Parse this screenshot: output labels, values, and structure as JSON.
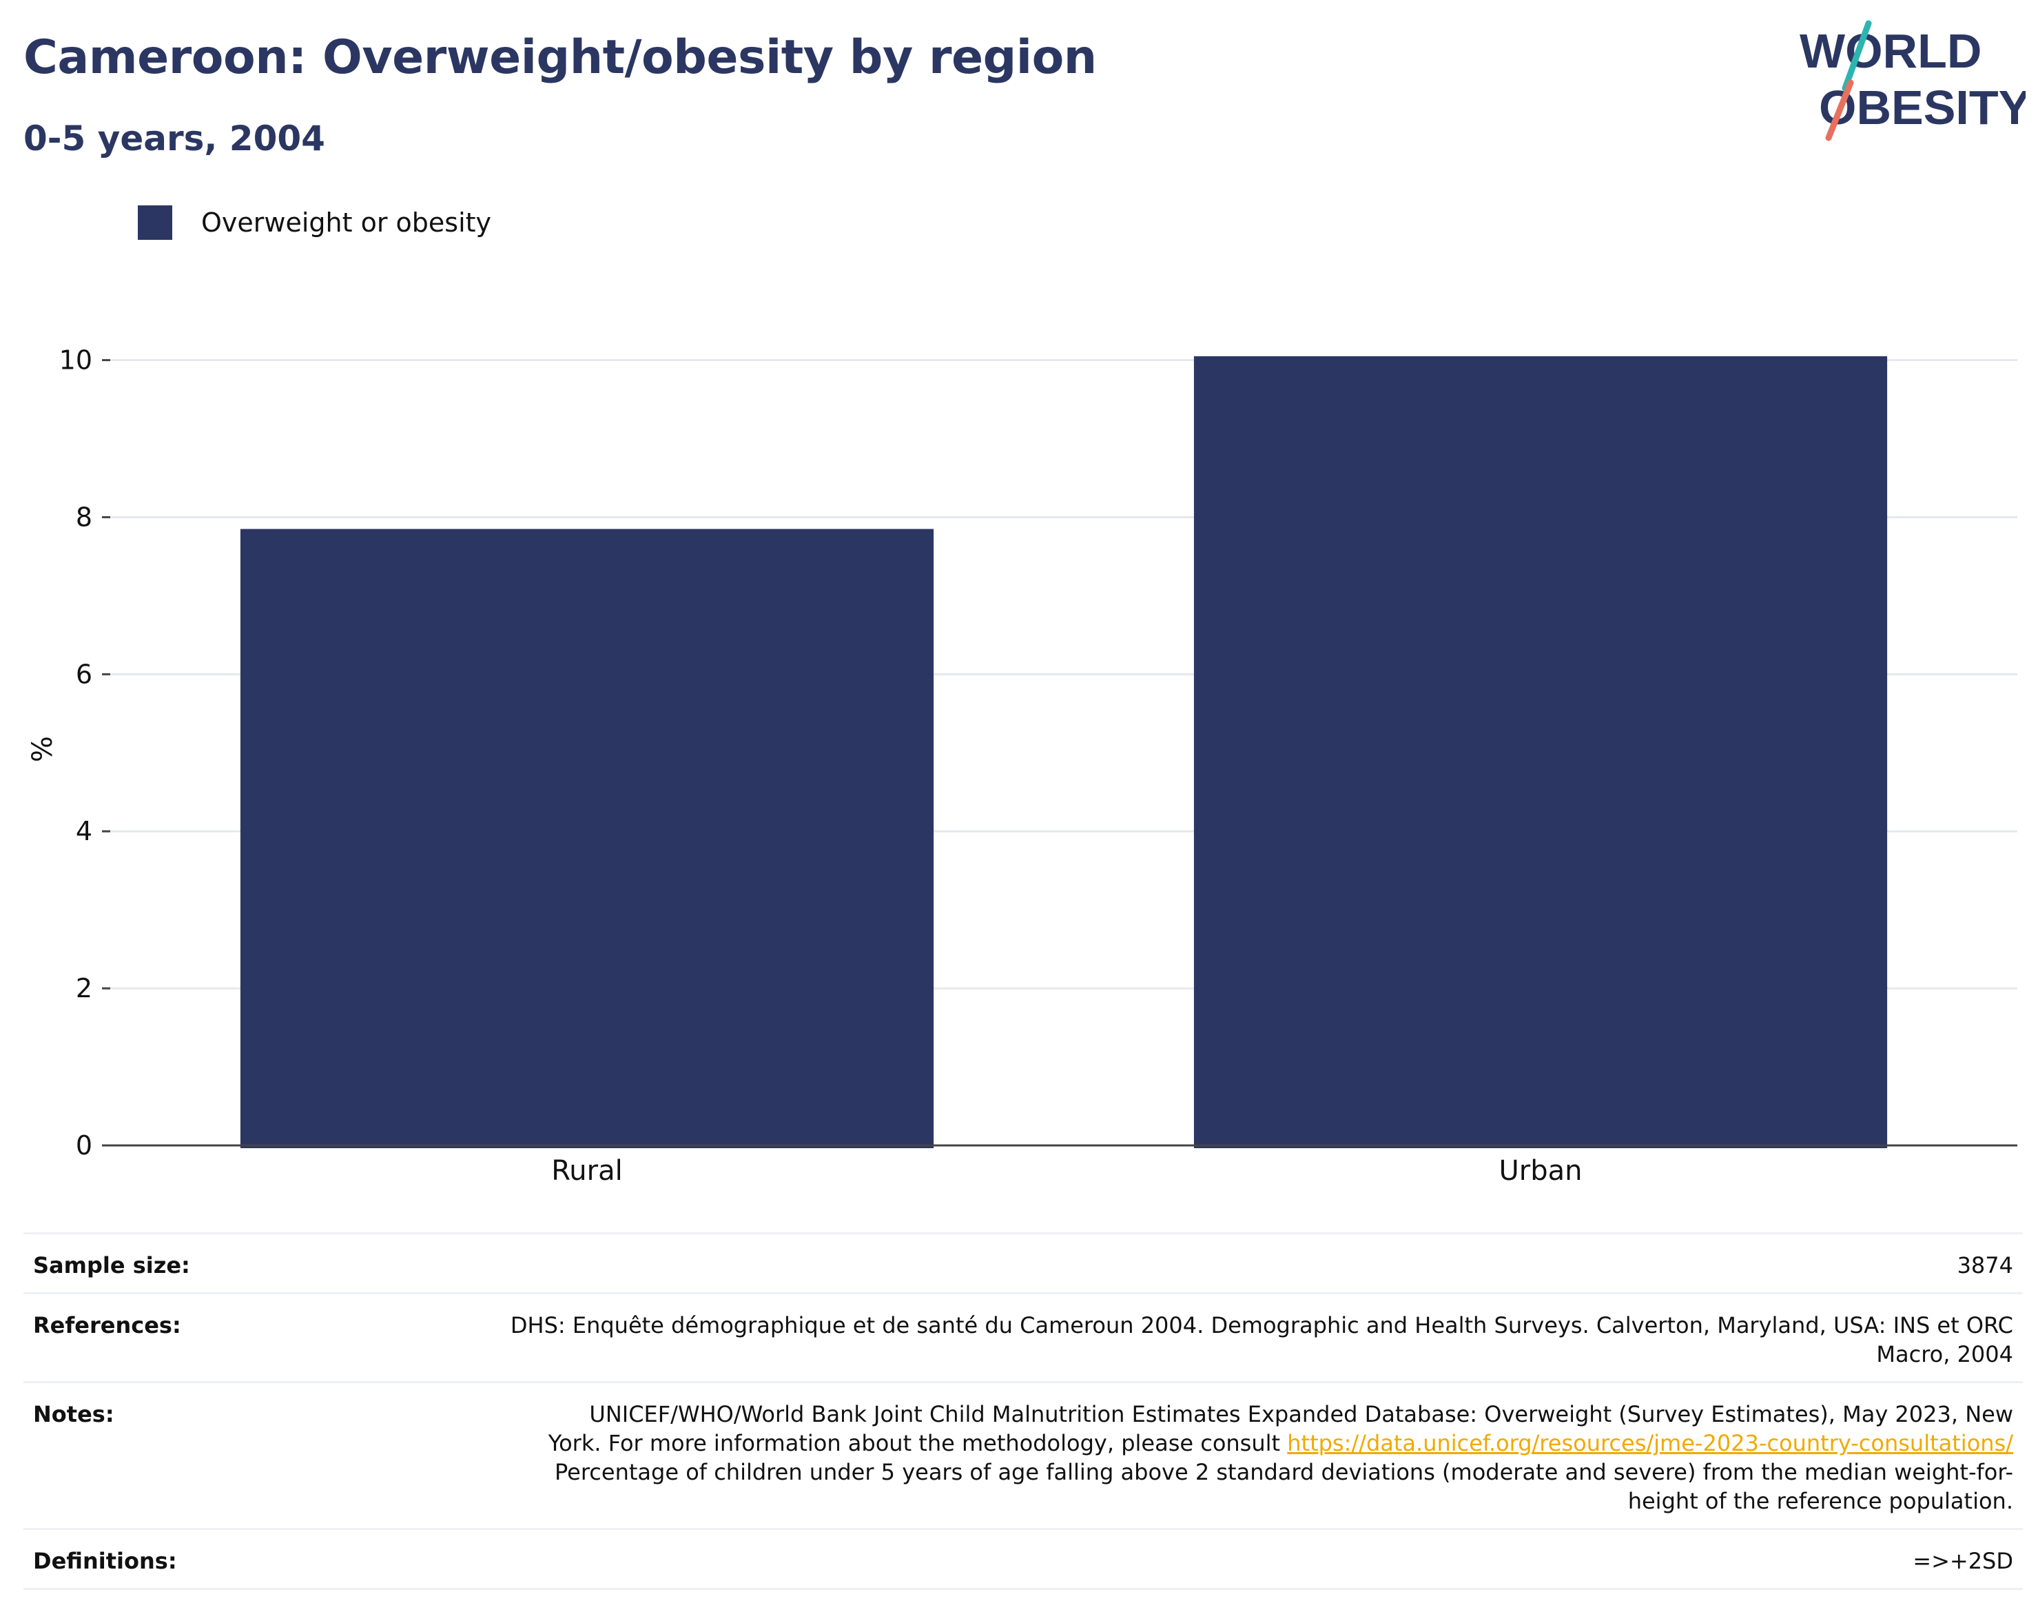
{
  "header": {
    "title": "Cameroon: Overweight/obesity by region",
    "subtitle": "0-5 years, 2004"
  },
  "logo": {
    "line1": "WORLD",
    "line2": "OBESITY"
  },
  "colors": {
    "bar": "#2b3762",
    "title": "#2b3762",
    "logo_teal": "#2cb5b0",
    "logo_coral": "#e8705e",
    "link": "#f2a900",
    "grid": "#e6e8ef",
    "axis": "#444444"
  },
  "chart_data": {
    "type": "bar",
    "categories": [
      "Rural",
      "Urban"
    ],
    "series": [
      {
        "name": "Overweight or obesity",
        "values": [
          7.85,
          10.05
        ]
      }
    ],
    "ylabel": "%",
    "ylim": [
      0,
      10.9
    ],
    "yticks": [
      0,
      2,
      4,
      6,
      8,
      10
    ],
    "grid": true,
    "legend_position": "top-left"
  },
  "info": {
    "sample_size": {
      "label": "Sample size:",
      "value": "3874"
    },
    "references": {
      "label": "References:",
      "line1": "DHS: Enquête démographique et de santé du Cameroun 2004. Demographic and Health Surveys. Calverton, Maryland, USA: INS et ORC",
      "line2": "Macro, 2004"
    },
    "notes": {
      "label": "Notes:",
      "line1": "UNICEF/WHO/World Bank Joint Child Malnutrition Estimates Expanded Database: Overweight (Survey Estimates), May 2023, New",
      "line2_prefix": "York. For more information about the methodology, please consult ",
      "link": "https://data.unicef.org/resources/jme-2023-country-consultations/",
      "line3": "Percentage of children under 5 years of age falling above 2 standard deviations (moderate and severe) from the median weight-for-",
      "line4": "height of the reference population."
    },
    "definitions": {
      "label": "Definitions:",
      "value": "=>+2SD"
    }
  }
}
